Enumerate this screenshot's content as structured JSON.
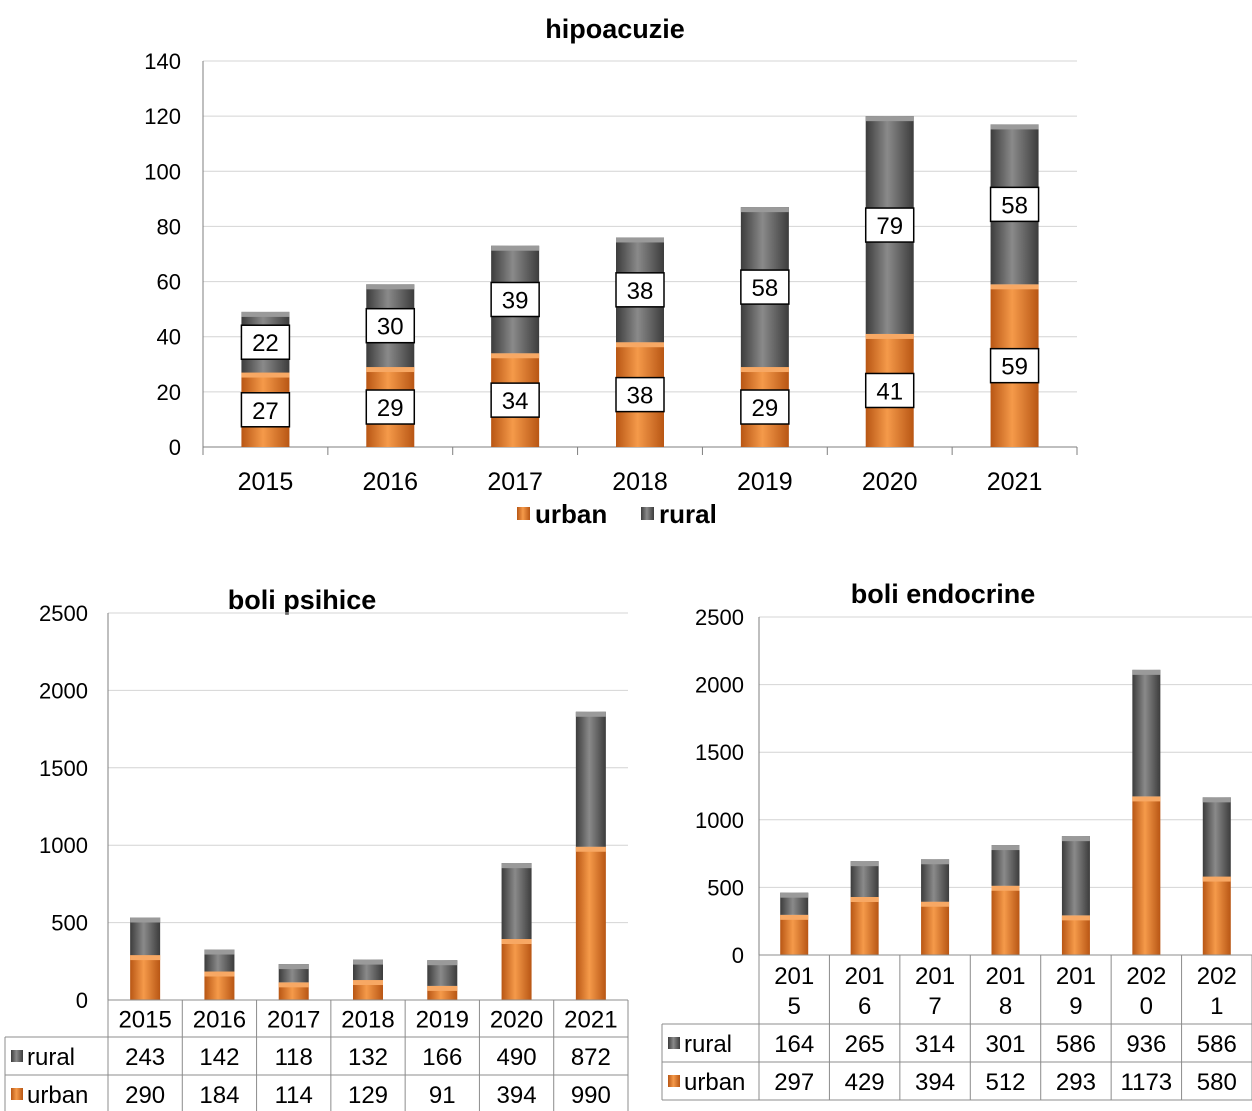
{
  "colors": {
    "urban": "#f0862f",
    "urban_dark": "#b85614",
    "rural": "#6f6f6f",
    "rural_dark": "#3c3c3c",
    "grid": "#d4d4d4",
    "axis": "#7f7f7f"
  },
  "chart_data": [
    {
      "type": "bar",
      "stacked": true,
      "title": "hipoacuzie",
      "categories": [
        "2015",
        "2016",
        "2017",
        "2018",
        "2019",
        "2020",
        "2021"
      ],
      "series": [
        {
          "name": "urban",
          "values": [
            27,
            29,
            34,
            38,
            29,
            41,
            59
          ]
        },
        {
          "name": "rural",
          "values": [
            22,
            30,
            39,
            38,
            58,
            79,
            58
          ]
        }
      ],
      "ylim": [
        0,
        140
      ],
      "yticks": [
        0,
        20,
        40,
        60,
        80,
        100,
        120,
        140
      ],
      "grid": true,
      "legend": "bottom",
      "legend_items": [
        "urban",
        "rural"
      ]
    },
    {
      "type": "bar",
      "stacked": true,
      "title": "boli psihice",
      "categories": [
        "2015",
        "2016",
        "2017",
        "2018",
        "2019",
        "2020",
        "2021"
      ],
      "series": [
        {
          "name": "rural",
          "values": [
            243,
            142,
            118,
            132,
            166,
            490,
            872
          ]
        },
        {
          "name": "urban",
          "values": [
            290,
            184,
            114,
            129,
            91,
            394,
            990
          ]
        }
      ],
      "ylim": [
        0,
        2500
      ],
      "yticks": [
        0,
        500,
        1000,
        1500,
        2000,
        2500
      ],
      "grid": true,
      "legend": "data table"
    },
    {
      "type": "bar",
      "stacked": true,
      "title": "boli endocrine",
      "categories": [
        "201\n5",
        "201\n6",
        "201\n7",
        "201\n8",
        "201\n9",
        "202\n0",
        "202\n1"
      ],
      "series": [
        {
          "name": "rural",
          "values": [
            164,
            265,
            314,
            301,
            586,
            936,
            586
          ]
        },
        {
          "name": "urban",
          "values": [
            297,
            429,
            394,
            512,
            293,
            1173,
            580
          ]
        }
      ],
      "ylim": [
        0,
        2500
      ],
      "yticks": [
        0,
        500,
        1000,
        1500,
        2000,
        2500
      ],
      "grid": true,
      "legend": "data table"
    }
  ]
}
